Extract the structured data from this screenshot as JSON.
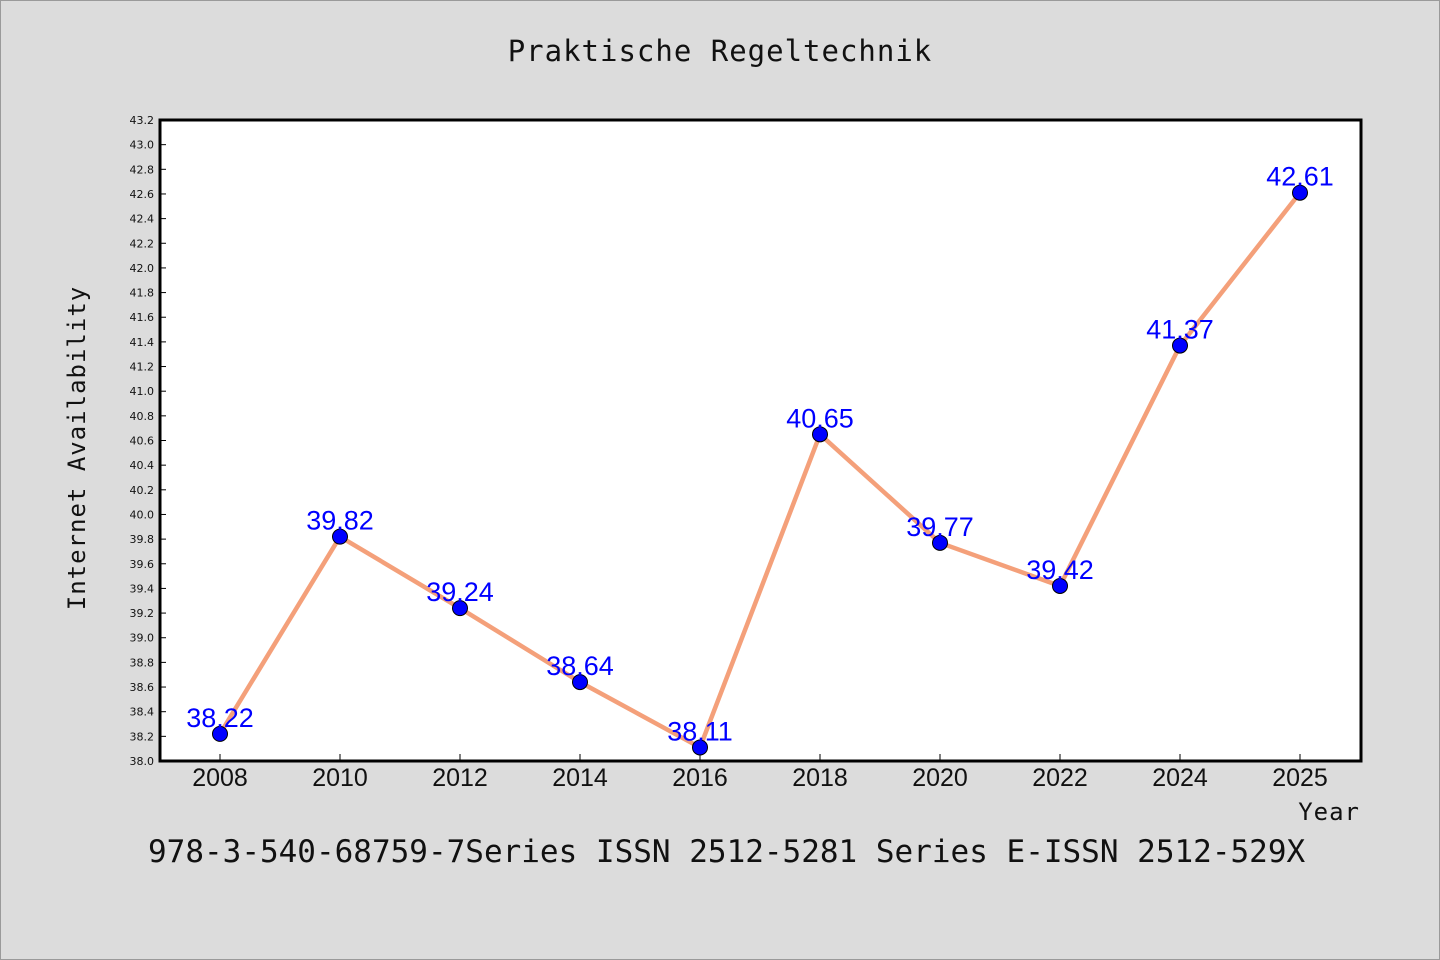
{
  "chart_data": {
    "type": "line",
    "title": "Praktische Regeltechnik",
    "xlabel": "Year",
    "ylabel": "Internet Availability",
    "ylim": [
      38.0,
      43.2
    ],
    "y_ticks": [
      "38.0",
      "38.2",
      "38.4",
      "38.6",
      "38.8",
      "39.0",
      "39.2",
      "39.4",
      "39.6",
      "39.8",
      "40.0",
      "40.2",
      "40.4",
      "40.6",
      "40.8",
      "41.0",
      "41.2",
      "41.4",
      "41.6",
      "41.8",
      "42.0",
      "42.2",
      "42.4",
      "42.6",
      "42.8",
      "43.0",
      "43.2"
    ],
    "categories": [
      "2008",
      "2010",
      "2012",
      "2014",
      "2016",
      "2018",
      "2020",
      "2022",
      "2024",
      "2025"
    ],
    "series": [
      {
        "values": [
          38.22,
          39.82,
          39.24,
          38.64,
          38.11,
          40.65,
          39.77,
          39.42,
          41.37,
          42.61
        ],
        "labels": [
          "38.22",
          "39.82",
          "39.24",
          "38.64",
          "38.11",
          "40.65",
          "39.77",
          "39.42",
          "41.37",
          "42.61"
        ],
        "line_color": "#f4a07a",
        "marker_color": "#0000ff"
      }
    ],
    "grid": false,
    "legend": "none"
  },
  "footnote": "978-3-540-68759-7Series ISSN 2512-5281 Series E-ISSN 2512-529X"
}
